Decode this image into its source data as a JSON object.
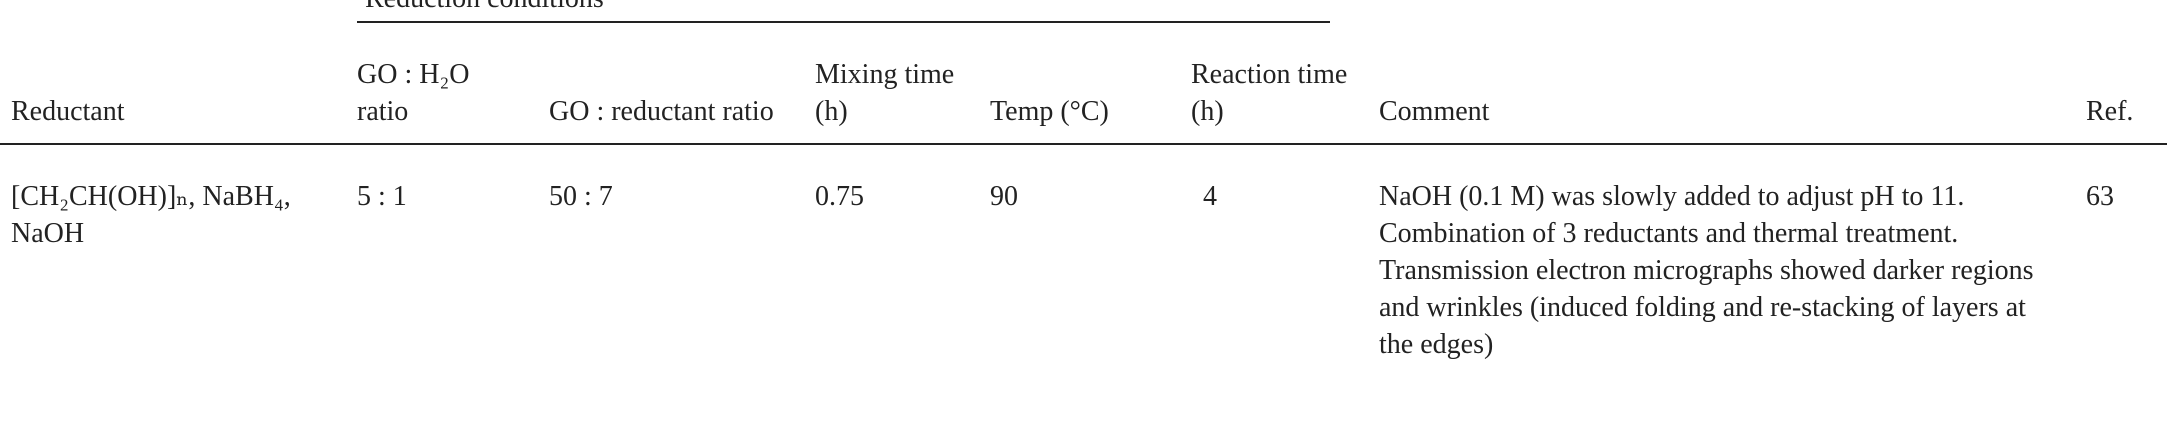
{
  "table": {
    "group_header": "Reduction conditions",
    "columns": [
      "Reductant",
      "GO : H₂O ratio",
      "GO : reductant ratio",
      "Mixing time (h)",
      "Temp (°C)",
      "Reaction time (h)",
      "Comment",
      "Ref."
    ],
    "rows": [
      [
        "[CH₂CH(OH)]ₙ, NaBH₄, NaOH",
        "5 : 1",
        "50 : 7",
        "0.75",
        "90",
        "4",
        "NaOH (0.1 M) was slowly added to adjust pH to 11. Combination of 3 reductants and thermal treatment. Transmission electron micrographs showed darker regions and wrinkles (induced folding and re-stacking of layers at the edges)",
        "63"
      ]
    ]
  }
}
